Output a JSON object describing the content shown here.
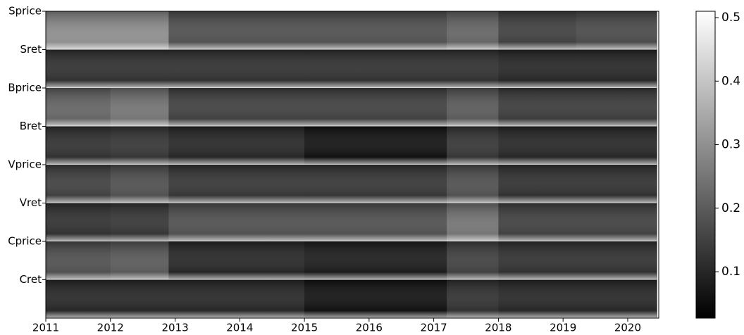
{
  "chart_data": {
    "type": "heatmap",
    "rows": [
      "Sprice",
      "Sret",
      "Bprice",
      "Bret",
      "Vprice",
      "Vret",
      "Cprice",
      "Cret"
    ],
    "x_edges": [
      2011,
      2012,
      2012.9,
      2015,
      2017.2,
      2018,
      2019.2,
      2020.45
    ],
    "values": [
      [
        0.3,
        0.3,
        0.18,
        0.18,
        0.22,
        0.15,
        0.17
      ],
      [
        0.12,
        0.12,
        0.12,
        0.12,
        0.12,
        0.1,
        0.1
      ],
      [
        0.22,
        0.25,
        0.15,
        0.15,
        0.2,
        0.14,
        0.14
      ],
      [
        0.12,
        0.13,
        0.1,
        0.06,
        0.13,
        0.1,
        0.1
      ],
      [
        0.15,
        0.18,
        0.13,
        0.13,
        0.18,
        0.12,
        0.12
      ],
      [
        0.12,
        0.13,
        0.18,
        0.18,
        0.25,
        0.15,
        0.15
      ],
      [
        0.18,
        0.2,
        0.1,
        0.08,
        0.15,
        0.12,
        0.12
      ],
      [
        0.1,
        0.1,
        0.1,
        0.06,
        0.12,
        0.1,
        0.1
      ]
    ],
    "xlim": [
      2011,
      2020.48
    ],
    "xticks": [
      2011,
      2012,
      2013,
      2014,
      2015,
      2016,
      2017,
      2018,
      2019,
      2020
    ],
    "clim": [
      0.027,
      0.51
    ],
    "colorbar_ticks": [
      0.1,
      0.2,
      0.3,
      0.4,
      0.5
    ],
    "colormap": [
      "#000000",
      "#ffffff"
    ]
  }
}
